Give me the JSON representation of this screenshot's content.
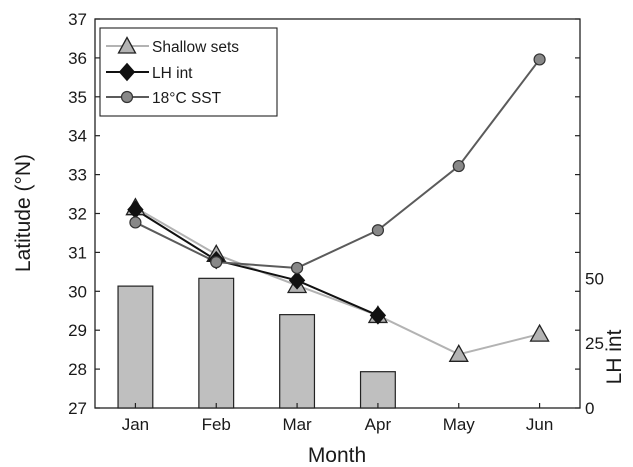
{
  "chart_data": {
    "type": "line",
    "title": "",
    "xlabel": "Month",
    "ylabel": "Latitude (°N)",
    "y2label": "LH int",
    "categories": [
      "Jan",
      "Feb",
      "Mar",
      "Apr",
      "May",
      "Jun"
    ],
    "ylim": [
      27,
      37
    ],
    "yticks": [
      27,
      28,
      29,
      30,
      31,
      32,
      33,
      34,
      35,
      36,
      37
    ],
    "y2ticks": [
      0,
      25,
      50
    ],
    "y2lim": [
      0,
      150
    ],
    "grid": false,
    "legend_position": "top-left",
    "series": [
      {
        "name": "Shallow sets",
        "kind": "line",
        "marker": "triangle",
        "color": "#b3b3b3",
        "marker_fill": "#b3b3b3",
        "values": [
          32.15,
          30.95,
          30.15,
          29.38,
          28.38,
          28.9
        ]
      },
      {
        "name": "LH int",
        "kind": "line",
        "marker": "diamond",
        "color": "#111111",
        "marker_fill": "#111111",
        "values": [
          32.1,
          30.8,
          30.28,
          29.38,
          null,
          null
        ]
      },
      {
        "name": "18°C  SST",
        "kind": "line",
        "marker": "circle",
        "color": "#5b5b5b",
        "marker_fill": "#888888",
        "values": [
          31.77,
          30.75,
          30.6,
          31.57,
          33.22,
          35.96
        ]
      },
      {
        "name": "LH int",
        "kind": "bar",
        "axis": "right",
        "color": "#bfbfbf",
        "values": [
          47,
          50,
          36,
          14,
          null,
          null
        ]
      }
    ]
  }
}
